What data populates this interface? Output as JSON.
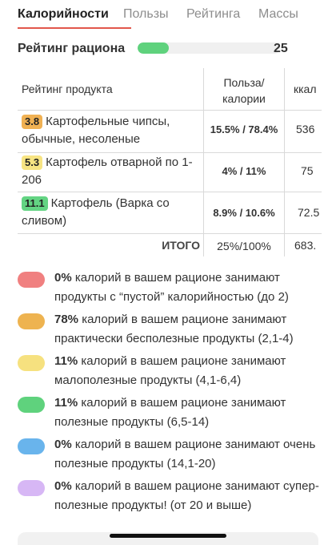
{
  "tabs": [
    {
      "label": "Калорийности"
    },
    {
      "label": "Пользы"
    },
    {
      "label": "Рейтинга"
    },
    {
      "label": "Массы"
    }
  ],
  "rating": {
    "label": "Рейтинг рациона",
    "value": "25",
    "fill_fraction": 0.22,
    "fill_color": "#5fd27d"
  },
  "table": {
    "headers": {
      "product": "Рейтинг продукта",
      "benefit_line1": "Польза/",
      "benefit_line2": "калории",
      "kcal": "ккал"
    },
    "rows": [
      {
        "score": "3.8",
        "score_color": "#f0b153",
        "name": "Картофельные чипсы, обычные, несоленые",
        "benefit": "15.5% / 78.4%",
        "kcal": "536"
      },
      {
        "score": "5.3",
        "score_color": "#f7e483",
        "name": "Картофель отварной по 1-206",
        "benefit": "4% / 11%",
        "kcal": "75"
      },
      {
        "score": "11.1",
        "score_color": "#63d483",
        "name": "Картофель (Варка со сливом)",
        "benefit": "8.9% / 10.6%",
        "kcal": "72.5"
      }
    ],
    "total": {
      "label": "ИТОГО",
      "benefit": "25%/100%",
      "kcal": "683."
    }
  },
  "legend": [
    {
      "color": "#f08080",
      "percent": "0%",
      "text": " калорий в вашем рационе занимают продукты с “пустой” калорийностью (до 2)"
    },
    {
      "color": "#eeb350",
      "percent": "78%",
      "text": " калорий в вашем рационе занимают практически бесполезные продукты (2,1-4)"
    },
    {
      "color": "#f6e17f",
      "percent": "11%",
      "text": " калорий в вашем рационе занимают малополезные продукты (4,1-6,4)"
    },
    {
      "color": "#5fd27d",
      "percent": "11%",
      "text": " калорий в вашем рационе занимают полезные продукты (6,5-14)"
    },
    {
      "color": "#69b4ec",
      "percent": "0%",
      "text": " калорий в вашем рационе занимают очень полезные продукты (14,1-20)"
    },
    {
      "color": "#d7b7f5",
      "percent": "0%",
      "text": " калорий в вашем рационе занимают супер-полезные продукты! (от 20 и выше)"
    }
  ]
}
